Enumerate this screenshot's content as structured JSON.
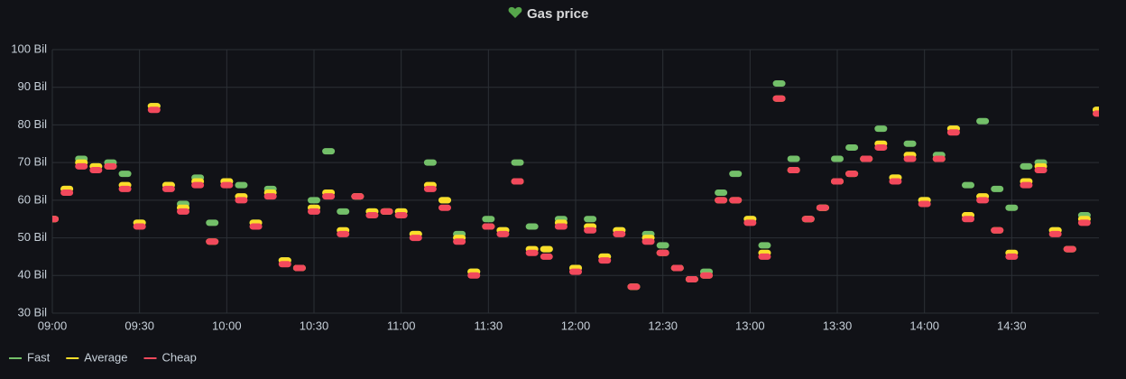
{
  "chart_data": {
    "type": "scatter",
    "title": "Gas price",
    "x": [
      "09:00",
      "09:05",
      "09:10",
      "09:15",
      "09:20",
      "09:25",
      "09:30",
      "09:35",
      "09:40",
      "09:45",
      "09:50",
      "09:55",
      "10:00",
      "10:05",
      "10:10",
      "10:15",
      "10:20",
      "10:25",
      "10:30",
      "10:35",
      "10:40",
      "10:45",
      "10:50",
      "10:55",
      "11:00",
      "11:05",
      "11:10",
      "11:15",
      "11:20",
      "11:25",
      "11:30",
      "11:35",
      "11:40",
      "11:45",
      "11:50",
      "11:55",
      "12:00",
      "12:05",
      "12:10",
      "12:15",
      "12:20",
      "12:25",
      "12:30",
      "12:35",
      "12:40",
      "12:45",
      "12:50",
      "12:55",
      "13:00",
      "13:05",
      "13:10",
      "13:15",
      "13:20",
      "13:25",
      "13:30",
      "13:35",
      "13:40",
      "13:45",
      "13:50",
      "13:55",
      "14:00",
      "14:05",
      "14:10",
      "14:15",
      "14:20",
      "14:25",
      "14:30",
      "14:35",
      "14:40",
      "14:45",
      "14:50",
      "14:55",
      "15:00"
    ],
    "series": [
      {
        "name": "Fast",
        "color": "#73bf69",
        "values": [
          55,
          63,
          71,
          69,
          70,
          67,
          54,
          85,
          64,
          59,
          66,
          54,
          65,
          64,
          54,
          63,
          44,
          42,
          60,
          73,
          57,
          61,
          57,
          57,
          57,
          51,
          70,
          60,
          51,
          41,
          55,
          52,
          70,
          53,
          47,
          55,
          42,
          55,
          45,
          52,
          37,
          51,
          48,
          42,
          39,
          41,
          62,
          67,
          55,
          48,
          91,
          71,
          55,
          58,
          71,
          74,
          71,
          79,
          66,
          75,
          60,
          72,
          79,
          64,
          81,
          63,
          58,
          69,
          70,
          52,
          47,
          56,
          84
        ]
      },
      {
        "name": "Average",
        "color": "#fade2a",
        "values": [
          55,
          63,
          70,
          69,
          69,
          64,
          54,
          85,
          64,
          58,
          65,
          49,
          65,
          61,
          54,
          62,
          44,
          42,
          58,
          62,
          52,
          61,
          57,
          57,
          57,
          51,
          64,
          60,
          50,
          41,
          53,
          52,
          65,
          47,
          47,
          54,
          42,
          53,
          45,
          52,
          37,
          50,
          46,
          42,
          39,
          40,
          60,
          60,
          55,
          46,
          87,
          68,
          55,
          58,
          65,
          67,
          71,
          75,
          66,
          72,
          60,
          71,
          79,
          56,
          61,
          52,
          46,
          65,
          69,
          52,
          47,
          55,
          84
        ]
      },
      {
        "name": "Cheap",
        "color": "#f2495c",
        "values": [
          55,
          62,
          69,
          68,
          69,
          63,
          53,
          84,
          63,
          57,
          64,
          49,
          64,
          60,
          53,
          61,
          43,
          42,
          57,
          61,
          51,
          61,
          56,
          57,
          56,
          50,
          63,
          58,
          49,
          40,
          53,
          51,
          65,
          46,
          45,
          53,
          41,
          52,
          44,
          51,
          37,
          49,
          46,
          42,
          39,
          40,
          60,
          60,
          54,
          45,
          87,
          68,
          55,
          58,
          65,
          67,
          71,
          74,
          65,
          71,
          59,
          71,
          78,
          55,
          60,
          52,
          45,
          64,
          68,
          51,
          47,
          54,
          83
        ]
      }
    ],
    "xlim": [
      "09:00",
      "15:00"
    ],
    "xticks": [
      "09:00",
      "09:30",
      "10:00",
      "10:30",
      "11:00",
      "11:30",
      "12:00",
      "12:30",
      "13:00",
      "13:30",
      "14:00",
      "14:30"
    ],
    "ylim": [
      30,
      100
    ],
    "yticks": [
      {
        "value": 30,
        "label": "30 Bil"
      },
      {
        "value": 40,
        "label": "40 Bil"
      },
      {
        "value": 50,
        "label": "50 Bil"
      },
      {
        "value": 60,
        "label": "60 Bil"
      },
      {
        "value": 70,
        "label": "70 Bil"
      },
      {
        "value": 80,
        "label": "80 Bil"
      },
      {
        "value": 90,
        "label": "90 Bil"
      },
      {
        "value": 100,
        "label": "100 Bil"
      }
    ],
    "grid": true,
    "legend": "bottom-left"
  }
}
